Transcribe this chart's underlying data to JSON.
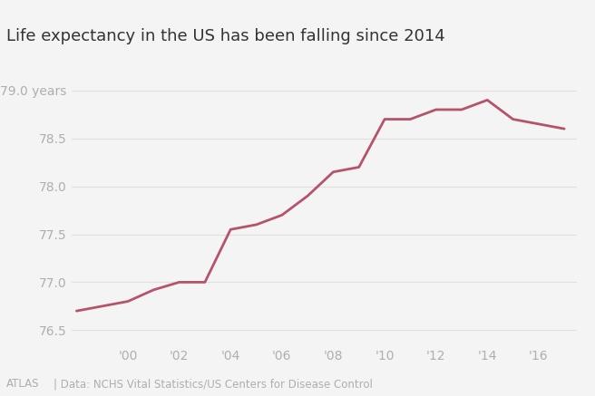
{
  "title": "Life expectancy in the US has been falling since 2014",
  "years": [
    1998,
    1999,
    2000,
    2001,
    2002,
    2003,
    2004,
    2005,
    2006,
    2007,
    2008,
    2009,
    2010,
    2011,
    2012,
    2013,
    2014,
    2015,
    2016,
    2017
  ],
  "values": [
    76.7,
    76.75,
    76.8,
    76.92,
    77.0,
    77.0,
    77.55,
    77.6,
    77.7,
    77.9,
    78.15,
    78.2,
    78.7,
    78.7,
    78.8,
    78.8,
    78.9,
    78.7,
    78.65,
    78.6
  ],
  "line_color": "#b5536a",
  "bg_color": "#f5f4f4",
  "grid_color": "#e0dede",
  "text_color": "#b0adad",
  "title_color": "#333333",
  "ylim": [
    76.35,
    79.2
  ],
  "yticks": [
    76.5,
    77.0,
    77.5,
    78.0,
    78.5,
    79.0
  ],
  "ytick_labels": [
    "76.5",
    "77.0",
    "77.5",
    "78.0",
    "78.5",
    "79.0 years"
  ],
  "xtick_positions": [
    2000,
    2002,
    2004,
    2006,
    2008,
    2010,
    2012,
    2014,
    2016
  ],
  "xtick_labels": [
    "'00",
    "'02",
    "'04",
    "'06",
    "'08",
    "'10",
    "'12",
    "'14",
    "'16"
  ],
  "footer_atlas": "ATLAS",
  "footer_source": "| Data: NCHS Vital Statistics/US Centers for Disease Control",
  "line_width": 2.0,
  "title_fontsize": 13,
  "tick_fontsize": 10,
  "footer_fontsize": 8.5
}
